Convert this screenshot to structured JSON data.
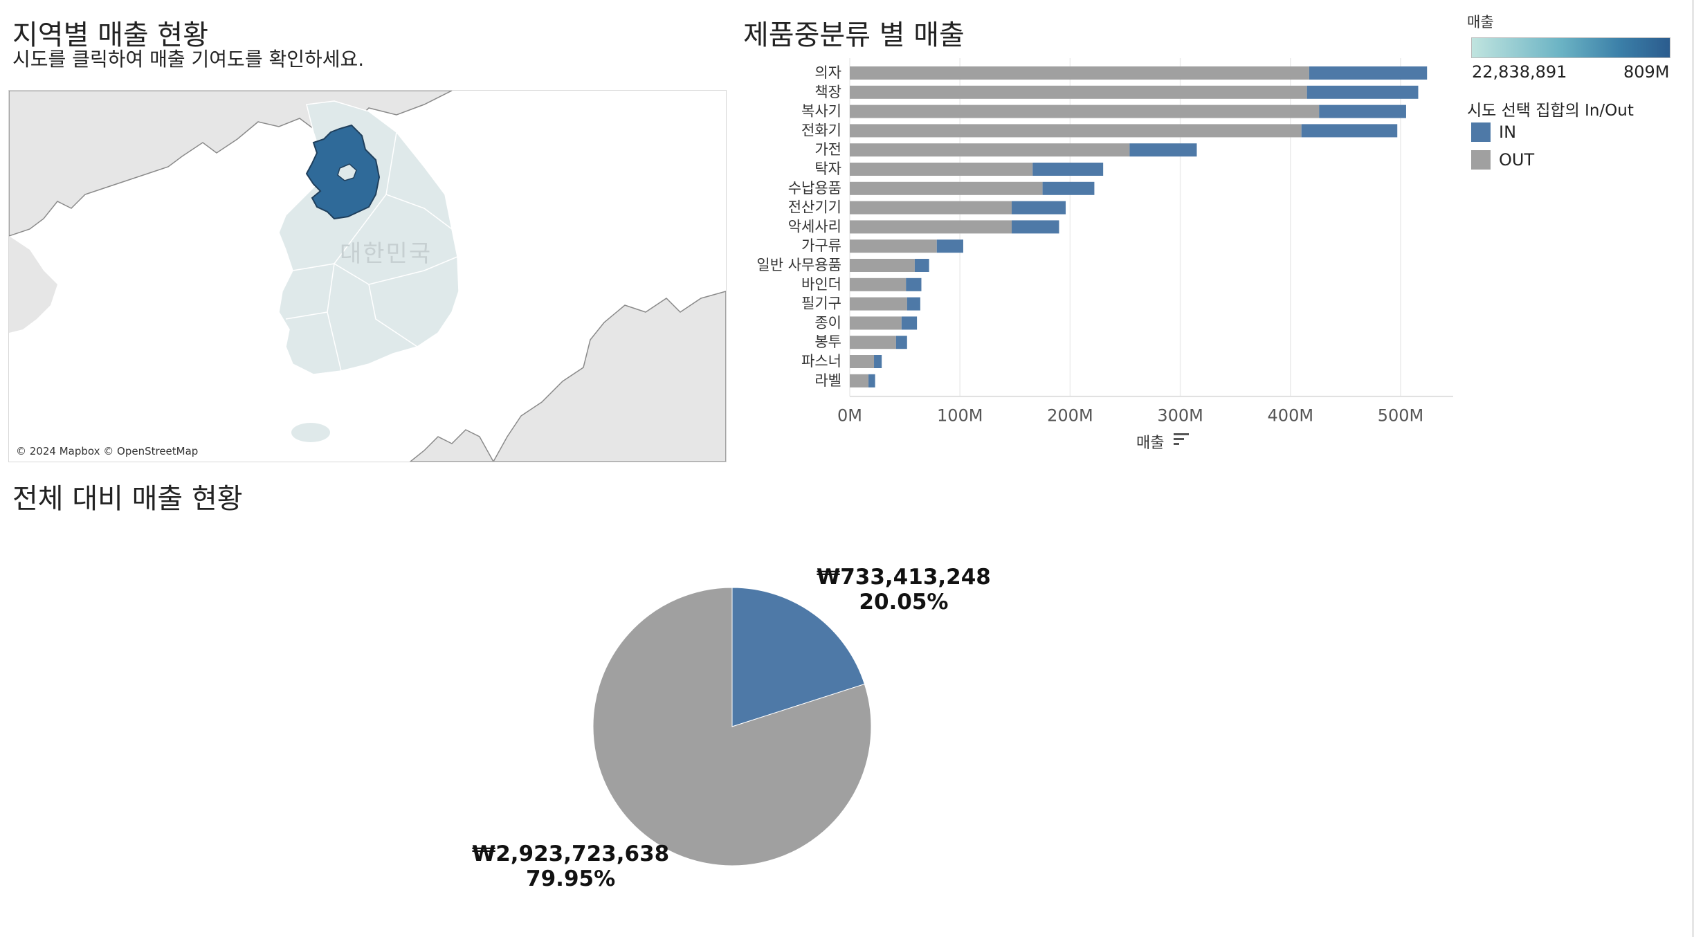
{
  "map_section": {
    "title": "지역별 매출 현황",
    "subtitle": "시도를 클릭하여 매출 기여도를 확인하세요.",
    "country_label": "대한민국",
    "attribution": "© 2024 Mapbox © OpenStreetMap",
    "highlight_color": "#2f6a99",
    "region_color": "#dfe9ea",
    "neighbor_color": "#e6e6e6"
  },
  "bar_section": {
    "title": "제품중분류 별 매출",
    "sort_icon": "sort-descending-icon"
  },
  "legend": {
    "color_title": "매출",
    "min_label": "22,838,891",
    "max_label": "809M",
    "set_title": "시도 선택 집합의 In/Out",
    "items": [
      {
        "label": "IN",
        "color": "#4e79a7"
      },
      {
        "label": "OUT",
        "color": "#a0a0a0"
      }
    ]
  },
  "pie_section": {
    "title": "전체 대비 매출 현황",
    "in_amount": "₩733,413,248",
    "in_pct": "20.05%",
    "out_amount": "₩2,923,723,638",
    "out_pct": "79.95%"
  },
  "chart_data": [
    {
      "type": "bar",
      "orientation": "horizontal",
      "stacked": true,
      "title": "제품중분류 별 매출",
      "xlabel": "매출",
      "ylabel": "",
      "xlim": [
        0,
        550000000
      ],
      "x_ticks": [
        "0M",
        "100M",
        "200M",
        "300M",
        "400M",
        "500M"
      ],
      "categories": [
        "의자",
        "책장",
        "복사기",
        "전화기",
        "가전",
        "탁자",
        "수납용품",
        "전산기기",
        "악세사리",
        "가구류",
        "일반 사무용품",
        "바인더",
        "필기구",
        "종이",
        "봉투",
        "파스너",
        "라벨"
      ],
      "series": [
        {
          "name": "OUT",
          "color": "#a0a0a0",
          "values": [
            417000000,
            415000000,
            426000000,
            410000000,
            254000000,
            166000000,
            175000000,
            147000000,
            147000000,
            79000000,
            59000000,
            51000000,
            52000000,
            47000000,
            42000000,
            22000000,
            17000000
          ]
        },
        {
          "name": "IN",
          "color": "#4e79a7",
          "values": [
            107000000,
            101000000,
            79000000,
            87000000,
            61000000,
            64000000,
            47000000,
            49000000,
            43000000,
            24000000,
            13000000,
            14000000,
            12000000,
            14000000,
            10000000,
            7000000,
            6000000
          ]
        }
      ],
      "grid": "vertical"
    },
    {
      "type": "pie",
      "title": "전체 대비 매출 현황",
      "slices": [
        {
          "name": "IN",
          "value": 733413248,
          "percent": 20.05,
          "color": "#4e79a7"
        },
        {
          "name": "OUT",
          "value": 2923723638,
          "percent": 79.95,
          "color": "#a0a0a0"
        }
      ]
    }
  ]
}
